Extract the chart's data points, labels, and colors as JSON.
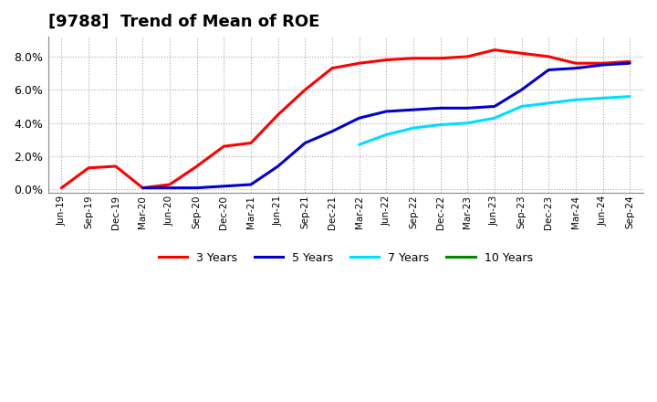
{
  "title": "[9788]  Trend of Mean of ROE",
  "background_color": "#ffffff",
  "plot_background": "#ffffff",
  "grid_color": "#aaaaaa",
  "x_labels": [
    "Jun-19",
    "Sep-19",
    "Dec-19",
    "Mar-20",
    "Jun-20",
    "Sep-20",
    "Dec-20",
    "Mar-21",
    "Jun-21",
    "Sep-21",
    "Dec-21",
    "Mar-22",
    "Jun-22",
    "Sep-22",
    "Dec-22",
    "Mar-23",
    "Jun-23",
    "Sep-23",
    "Dec-23",
    "Mar-24",
    "Jun-24",
    "Sep-24"
  ],
  "series": {
    "3 Years": {
      "color": "#ff0000",
      "data_x": [
        0,
        1,
        2,
        3,
        4,
        5,
        6,
        7,
        8,
        9,
        10,
        11,
        12,
        13,
        14,
        15,
        16,
        17,
        18,
        19,
        20,
        21
      ],
      "data_y": [
        0.001,
        0.013,
        0.014,
        0.001,
        0.003,
        0.014,
        0.026,
        0.028,
        0.045,
        0.06,
        0.073,
        0.076,
        0.078,
        0.079,
        0.079,
        0.08,
        0.084,
        0.082,
        0.08,
        0.076,
        0.076,
        0.077
      ]
    },
    "5 Years": {
      "color": "#0000cc",
      "data_x": [
        3,
        4,
        5,
        6,
        7,
        8,
        9,
        10,
        11,
        12,
        13,
        14,
        15,
        16,
        17,
        18,
        19,
        20,
        21
      ],
      "data_y": [
        0.001,
        0.001,
        0.001,
        0.002,
        0.003,
        0.014,
        0.028,
        0.035,
        0.043,
        0.047,
        0.048,
        0.049,
        0.049,
        0.05,
        0.06,
        0.072,
        0.073,
        0.075,
        0.076
      ]
    },
    "7 Years": {
      "color": "#00ddff",
      "data_x": [
        11,
        12,
        13,
        14,
        15,
        16,
        17,
        18,
        19,
        20,
        21
      ],
      "data_y": [
        0.027,
        0.033,
        0.037,
        0.039,
        0.04,
        0.043,
        0.05,
        0.052,
        0.054,
        0.055,
        0.056
      ]
    },
    "10 Years": {
      "color": "#008800",
      "data_x": [],
      "data_y": []
    }
  },
  "ylim_min": -0.002,
  "ylim_max": 0.092,
  "yticks": [
    0.0,
    0.02,
    0.04,
    0.06,
    0.08
  ],
  "title_fontsize": 13,
  "legend_colors": [
    "#ff0000",
    "#0000cc",
    "#00ddff",
    "#008800"
  ],
  "legend_labels": [
    "3 Years",
    "5 Years",
    "7 Years",
    "10 Years"
  ]
}
